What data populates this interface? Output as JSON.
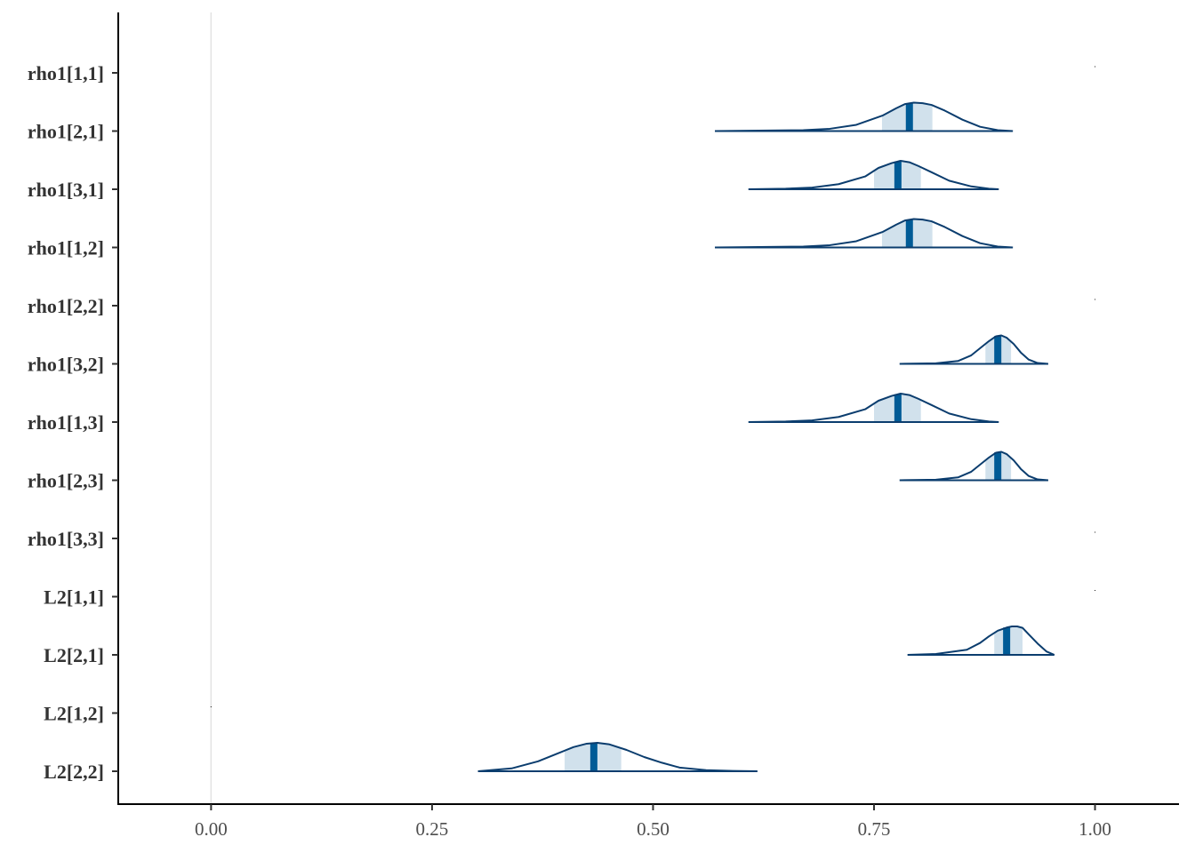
{
  "chart_data": {
    "type": "area",
    "title": "",
    "xlabel": "",
    "ylabel": "",
    "xlim": [
      -0.105,
      1.095
    ],
    "x_ticks": [
      "0.00",
      "0.25",
      "0.50",
      "0.75",
      "1.00"
    ],
    "x_tick_values": [
      0,
      0.25,
      0.5,
      0.75,
      1.0
    ],
    "vline": 0,
    "grid": false,
    "legend": "none",
    "colors": {
      "density_line": "#0b3d6e",
      "interval_fill": "#d1e1ec",
      "median_bar": "#005b96",
      "axis": "#000000",
      "tick": "#333333",
      "zero_line": "#e3e3e3"
    },
    "parameters": [
      {
        "label": "rho1[1,1]",
        "constant": 1.0
      },
      {
        "label": "rho1[2,1]",
        "min": 0.57,
        "max": 0.907,
        "median": 0.79,
        "lo": 0.759,
        "hi": 0.816,
        "density_x": [
          0.57,
          0.67,
          0.7,
          0.73,
          0.76,
          0.775,
          0.785,
          0.795,
          0.805,
          0.815,
          0.83,
          0.85,
          0.87,
          0.89,
          0.907
        ],
        "density_y": [
          0.0,
          0.03,
          0.08,
          0.22,
          0.55,
          0.8,
          0.95,
          1.0,
          0.98,
          0.92,
          0.72,
          0.4,
          0.15,
          0.03,
          0.0
        ]
      },
      {
        "label": "rho1[3,1]",
        "min": 0.608,
        "max": 0.891,
        "median": 0.777,
        "lo": 0.75,
        "hi": 0.803,
        "density_x": [
          0.608,
          0.65,
          0.68,
          0.71,
          0.74,
          0.755,
          0.77,
          0.78,
          0.79,
          0.8,
          0.815,
          0.835,
          0.86,
          0.88,
          0.891
        ],
        "density_y": [
          0.0,
          0.02,
          0.06,
          0.18,
          0.45,
          0.75,
          0.92,
          1.0,
          0.95,
          0.82,
          0.6,
          0.3,
          0.1,
          0.02,
          0.0
        ]
      },
      {
        "label": "rho1[1,2]",
        "min": 0.57,
        "max": 0.907,
        "median": 0.79,
        "lo": 0.759,
        "hi": 0.816,
        "density_x": [
          0.57,
          0.67,
          0.7,
          0.73,
          0.76,
          0.775,
          0.785,
          0.795,
          0.805,
          0.815,
          0.83,
          0.85,
          0.87,
          0.89,
          0.907
        ],
        "density_y": [
          0.0,
          0.03,
          0.08,
          0.22,
          0.55,
          0.8,
          0.95,
          1.0,
          0.98,
          0.92,
          0.72,
          0.4,
          0.15,
          0.03,
          0.0
        ]
      },
      {
        "label": "rho1[2,2]",
        "constant": 1.0
      },
      {
        "label": "rho1[3,2]",
        "min": 0.779,
        "max": 0.947,
        "median": 0.89,
        "lo": 0.876,
        "hi": 0.905,
        "density_x": [
          0.779,
          0.82,
          0.845,
          0.86,
          0.87,
          0.88,
          0.888,
          0.894,
          0.9,
          0.908,
          0.916,
          0.925,
          0.935,
          0.947
        ],
        "density_y": [
          0.0,
          0.02,
          0.1,
          0.3,
          0.55,
          0.8,
          0.97,
          1.0,
          0.92,
          0.7,
          0.4,
          0.15,
          0.03,
          0.0
        ]
      },
      {
        "label": "rho1[1,3]",
        "min": 0.608,
        "max": 0.891,
        "median": 0.777,
        "lo": 0.75,
        "hi": 0.803,
        "density_x": [
          0.608,
          0.65,
          0.68,
          0.71,
          0.74,
          0.755,
          0.77,
          0.78,
          0.79,
          0.8,
          0.815,
          0.835,
          0.86,
          0.88,
          0.891
        ],
        "density_y": [
          0.0,
          0.02,
          0.06,
          0.18,
          0.45,
          0.75,
          0.92,
          1.0,
          0.95,
          0.82,
          0.6,
          0.3,
          0.1,
          0.02,
          0.0
        ]
      },
      {
        "label": "rho1[2,3]",
        "min": 0.779,
        "max": 0.947,
        "median": 0.89,
        "lo": 0.876,
        "hi": 0.905,
        "density_x": [
          0.779,
          0.82,
          0.845,
          0.86,
          0.87,
          0.88,
          0.888,
          0.894,
          0.9,
          0.908,
          0.916,
          0.925,
          0.935,
          0.947
        ],
        "density_y": [
          0.0,
          0.02,
          0.1,
          0.3,
          0.55,
          0.8,
          0.97,
          1.0,
          0.92,
          0.7,
          0.4,
          0.15,
          0.03,
          0.0
        ]
      },
      {
        "label": "rho1[3,3]",
        "constant": 1.0
      },
      {
        "label": "L2[1,1]",
        "constant": 1.0
      },
      {
        "label": "L2[2,1]",
        "min": 0.788,
        "max": 0.954,
        "median": 0.9,
        "lo": 0.886,
        "hi": 0.918,
        "density_x": [
          0.788,
          0.82,
          0.855,
          0.87,
          0.88,
          0.89,
          0.9,
          0.906,
          0.912,
          0.918,
          0.925,
          0.935,
          0.945,
          0.954
        ],
        "density_y": [
          0.0,
          0.03,
          0.18,
          0.42,
          0.65,
          0.85,
          0.96,
          1.0,
          1.0,
          0.95,
          0.72,
          0.4,
          0.12,
          0.0
        ]
      },
      {
        "label": "L2[1,2]",
        "constant": 0.0
      },
      {
        "label": "L2[2,2]",
        "min": 0.302,
        "max": 0.618,
        "median": 0.433,
        "lo": 0.4,
        "hi": 0.464,
        "density_x": [
          0.302,
          0.34,
          0.37,
          0.39,
          0.41,
          0.425,
          0.437,
          0.45,
          0.47,
          0.49,
          0.51,
          0.53,
          0.56,
          0.59,
          0.618
        ],
        "density_y": [
          0.0,
          0.1,
          0.35,
          0.6,
          0.85,
          0.97,
          1.0,
          0.95,
          0.75,
          0.5,
          0.3,
          0.13,
          0.04,
          0.01,
          0.0
        ]
      }
    ]
  }
}
